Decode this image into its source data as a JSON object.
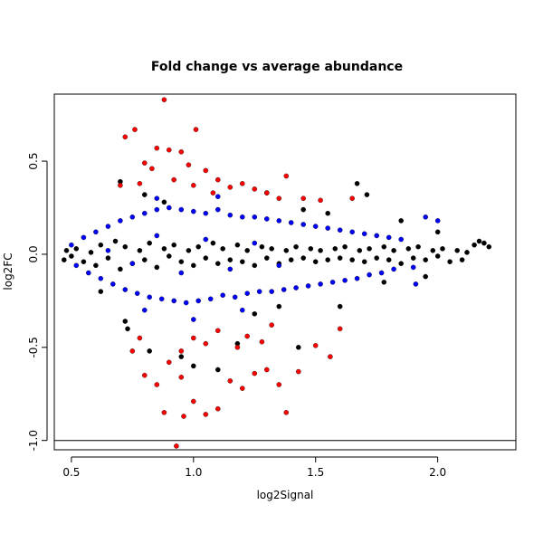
{
  "chart_data": {
    "type": "scatter",
    "title": "Fold change vs average abundance",
    "xlabel": "log2Signal",
    "ylabel": "log2FC",
    "xlim": [
      0.43,
      2.32
    ],
    "ylim": [
      -1.05,
      0.86
    ],
    "x_ticks": [
      {
        "value": 0.5,
        "label": "0.5"
      },
      {
        "value": 1.0,
        "label": "1.0"
      },
      {
        "value": 1.5,
        "label": "1.5"
      },
      {
        "value": 2.0,
        "label": "2.0"
      }
    ],
    "y_ticks": [
      {
        "value": -1.0,
        "label": "-1.0"
      },
      {
        "value": -0.5,
        "label": "-0.5"
      },
      {
        "value": 0.0,
        "label": "0.0"
      },
      {
        "value": 0.5,
        "label": "0.5"
      }
    ],
    "hline": -1.0,
    "grid": false,
    "colors": {
      "background": "#ffffff",
      "axis": "#000000",
      "black": "#000000",
      "blue": "#0000ff",
      "red": "#ff0000"
    },
    "series": [
      {
        "color": "black",
        "points": [
          [
            0.47,
            -0.03
          ],
          [
            0.48,
            0.02
          ],
          [
            0.5,
            -0.01
          ],
          [
            0.52,
            0.03
          ],
          [
            0.55,
            -0.04
          ],
          [
            0.58,
            0.01
          ],
          [
            0.6,
            -0.06
          ],
          [
            0.62,
            0.05
          ],
          [
            0.65,
            -0.02
          ],
          [
            0.68,
            0.07
          ],
          [
            0.7,
            -0.08
          ],
          [
            0.72,
            0.04
          ],
          [
            0.75,
            -0.05
          ],
          [
            0.78,
            0.02
          ],
          [
            0.8,
            -0.03
          ],
          [
            0.82,
            0.06
          ],
          [
            0.85,
            -0.07
          ],
          [
            0.88,
            0.03
          ],
          [
            0.9,
            -0.01
          ],
          [
            0.92,
            0.05
          ],
          [
            0.95,
            -0.04
          ],
          [
            0.98,
            0.02
          ],
          [
            1.0,
            -0.06
          ],
          [
            1.02,
            0.04
          ],
          [
            1.05,
            -0.02
          ],
          [
            1.08,
            0.06
          ],
          [
            1.1,
            -0.05
          ],
          [
            1.12,
            0.03
          ],
          [
            1.15,
            -0.03
          ],
          [
            1.18,
            0.05
          ],
          [
            1.2,
            -0.04
          ],
          [
            1.22,
            0.02
          ],
          [
            1.25,
            -0.06
          ],
          [
            1.28,
            0.04
          ],
          [
            1.3,
            -0.02
          ],
          [
            1.32,
            0.03
          ],
          [
            1.35,
            -0.05
          ],
          [
            1.38,
            0.02
          ],
          [
            1.4,
            -0.03
          ],
          [
            1.42,
            0.04
          ],
          [
            1.45,
            -0.02
          ],
          [
            1.48,
            0.03
          ],
          [
            1.5,
            -0.04
          ],
          [
            1.52,
            0.02
          ],
          [
            1.55,
            -0.03
          ],
          [
            1.58,
            0.03
          ],
          [
            1.6,
            -0.02
          ],
          [
            1.62,
            0.04
          ],
          [
            1.65,
            -0.03
          ],
          [
            1.68,
            0.02
          ],
          [
            1.7,
            -0.04
          ],
          [
            1.72,
            0.03
          ],
          [
            1.75,
            -0.02
          ],
          [
            1.78,
            0.04
          ],
          [
            1.8,
            -0.03
          ],
          [
            1.82,
            0.02
          ],
          [
            1.85,
            -0.05
          ],
          [
            1.88,
            0.03
          ],
          [
            1.9,
            -0.02
          ],
          [
            1.92,
            0.04
          ],
          [
            1.95,
            -0.03
          ],
          [
            1.98,
            0.02
          ],
          [
            2.0,
            -0.01
          ],
          [
            2.02,
            0.03
          ],
          [
            2.05,
            -0.04
          ],
          [
            2.08,
            0.02
          ],
          [
            2.1,
            -0.03
          ],
          [
            2.12,
            0.01
          ],
          [
            2.15,
            0.05
          ],
          [
            2.17,
            0.07
          ],
          [
            2.19,
            0.06
          ],
          [
            2.21,
            0.04
          ],
          [
            0.72,
            -0.36
          ],
          [
            0.73,
            -0.4
          ],
          [
            0.7,
            0.39
          ],
          [
            0.82,
            -0.52
          ],
          [
            0.95,
            -0.55
          ],
          [
            1.0,
            -0.6
          ],
          [
            1.1,
            -0.62
          ],
          [
            1.18,
            -0.48
          ],
          [
            1.43,
            -0.5
          ],
          [
            1.6,
            -0.28
          ],
          [
            1.67,
            0.38
          ],
          [
            1.71,
            0.32
          ],
          [
            1.78,
            -0.15
          ],
          [
            1.85,
            0.18
          ],
          [
            1.95,
            -0.12
          ],
          [
            2.0,
            0.12
          ],
          [
            0.8,
            0.32
          ],
          [
            0.88,
            0.28
          ],
          [
            1.3,
            0.33
          ],
          [
            1.45,
            0.24
          ],
          [
            1.55,
            0.22
          ],
          [
            1.25,
            -0.32
          ],
          [
            1.35,
            -0.28
          ],
          [
            0.62,
            -0.2
          ]
        ]
      },
      {
        "color": "blue",
        "points": [
          [
            0.5,
            0.05
          ],
          [
            0.52,
            -0.06
          ],
          [
            0.55,
            0.09
          ],
          [
            0.57,
            -0.1
          ],
          [
            0.6,
            0.12
          ],
          [
            0.62,
            -0.13
          ],
          [
            0.65,
            0.15
          ],
          [
            0.67,
            -0.16
          ],
          [
            0.7,
            0.18
          ],
          [
            0.72,
            -0.19
          ],
          [
            0.75,
            0.2
          ],
          [
            0.77,
            -0.21
          ],
          [
            0.8,
            0.22
          ],
          [
            0.82,
            -0.23
          ],
          [
            0.85,
            0.24
          ],
          [
            0.87,
            -0.24
          ],
          [
            0.9,
            0.25
          ],
          [
            0.92,
            -0.25
          ],
          [
            0.95,
            0.24
          ],
          [
            0.97,
            -0.26
          ],
          [
            1.0,
            0.23
          ],
          [
            1.02,
            -0.25
          ],
          [
            1.05,
            0.22
          ],
          [
            1.07,
            -0.24
          ],
          [
            1.1,
            0.24
          ],
          [
            1.12,
            -0.22
          ],
          [
            1.15,
            0.21
          ],
          [
            1.17,
            -0.23
          ],
          [
            1.2,
            0.2
          ],
          [
            1.22,
            -0.21
          ],
          [
            1.25,
            0.2
          ],
          [
            1.27,
            -0.2
          ],
          [
            1.3,
            0.19
          ],
          [
            1.32,
            -0.2
          ],
          [
            1.35,
            0.18
          ],
          [
            1.37,
            -0.19
          ],
          [
            1.4,
            0.17
          ],
          [
            1.42,
            -0.18
          ],
          [
            1.45,
            0.16
          ],
          [
            1.47,
            -0.17
          ],
          [
            1.5,
            0.15
          ],
          [
            1.52,
            -0.16
          ],
          [
            1.55,
            0.14
          ],
          [
            1.57,
            -0.15
          ],
          [
            1.6,
            0.13
          ],
          [
            1.62,
            -0.14
          ],
          [
            1.65,
            0.12
          ],
          [
            1.67,
            -0.13
          ],
          [
            1.7,
            0.11
          ],
          [
            1.72,
            -0.11
          ],
          [
            1.75,
            0.1
          ],
          [
            1.77,
            -0.1
          ],
          [
            1.8,
            0.09
          ],
          [
            1.82,
            -0.08
          ],
          [
            1.85,
            0.08
          ],
          [
            1.9,
            -0.07
          ],
          [
            1.95,
            0.2
          ],
          [
            2.0,
            0.18
          ],
          [
            1.91,
            -0.16
          ],
          [
            0.8,
            -0.3
          ],
          [
            0.85,
            0.3
          ],
          [
            1.0,
            -0.35
          ],
          [
            1.1,
            0.31
          ],
          [
            1.2,
            -0.3
          ],
          [
            0.65,
            0.02
          ],
          [
            0.75,
            -0.05
          ],
          [
            0.85,
            0.1
          ],
          [
            0.95,
            -0.1
          ],
          [
            1.05,
            0.08
          ],
          [
            1.15,
            -0.08
          ],
          [
            1.25,
            0.06
          ],
          [
            1.35,
            -0.06
          ]
        ]
      },
      {
        "color": "red",
        "points": [
          [
            0.88,
            0.83
          ],
          [
            1.01,
            0.67
          ],
          [
            0.76,
            0.67
          ],
          [
            0.72,
            0.63
          ],
          [
            0.85,
            0.57
          ],
          [
            0.9,
            0.56
          ],
          [
            0.95,
            0.55
          ],
          [
            0.8,
            0.49
          ],
          [
            0.83,
            0.46
          ],
          [
            0.98,
            0.48
          ],
          [
            1.05,
            0.45
          ],
          [
            1.1,
            0.4
          ],
          [
            1.15,
            0.36
          ],
          [
            1.2,
            0.38
          ],
          [
            1.25,
            0.35
          ],
          [
            1.3,
            0.33
          ],
          [
            1.35,
            0.3
          ],
          [
            1.38,
            0.42
          ],
          [
            1.45,
            0.3
          ],
          [
            1.52,
            0.29
          ],
          [
            1.65,
            0.3
          ],
          [
            0.7,
            0.37
          ],
          [
            0.78,
            0.38
          ],
          [
            0.92,
            0.4
          ],
          [
            1.0,
            0.37
          ],
          [
            1.08,
            0.33
          ],
          [
            0.93,
            -1.03
          ],
          [
            0.88,
            -0.85
          ],
          [
            0.96,
            -0.87
          ],
          [
            1.0,
            -0.79
          ],
          [
            1.05,
            -0.86
          ],
          [
            1.38,
            -0.85
          ],
          [
            1.1,
            -0.83
          ],
          [
            1.15,
            -0.68
          ],
          [
            1.2,
            -0.72
          ],
          [
            1.25,
            -0.64
          ],
          [
            1.3,
            -0.62
          ],
          [
            1.35,
            -0.7
          ],
          [
            1.43,
            -0.63
          ],
          [
            1.5,
            -0.49
          ],
          [
            1.56,
            -0.55
          ],
          [
            1.6,
            -0.4
          ],
          [
            0.8,
            -0.65
          ],
          [
            0.85,
            -0.7
          ],
          [
            0.9,
            -0.58
          ],
          [
            0.95,
            -0.52
          ],
          [
            1.0,
            -0.45
          ],
          [
            1.05,
            -0.48
          ],
          [
            1.1,
            -0.41
          ],
          [
            1.18,
            -0.5
          ],
          [
            1.22,
            -0.44
          ],
          [
            1.28,
            -0.47
          ],
          [
            1.32,
            -0.38
          ],
          [
            0.78,
            -0.45
          ],
          [
            0.75,
            -0.52
          ],
          [
            0.95,
            -0.66
          ]
        ]
      }
    ]
  }
}
